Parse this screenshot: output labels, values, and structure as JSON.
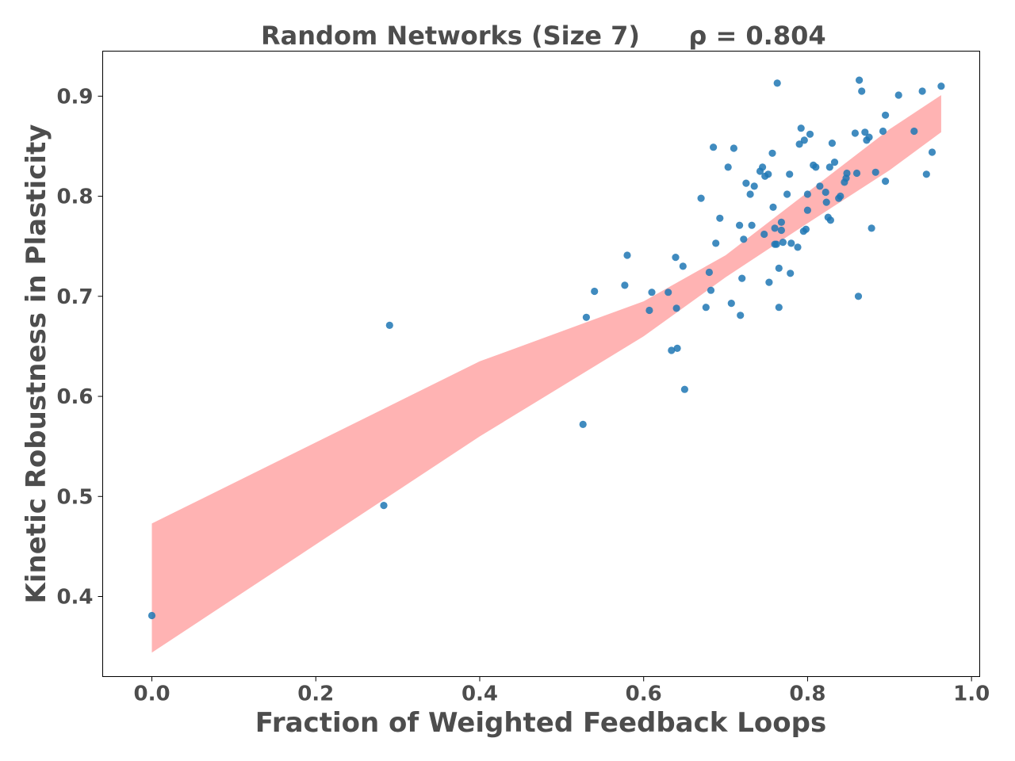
{
  "chart_data": {
    "type": "scatter",
    "title": "Random Networks (Size 7)",
    "annotation": "ρ = 0.804",
    "xlabel": "Fraction of Weighted Feedback Loops",
    "ylabel": "Kinetic Robustness in Plasticity",
    "xlim": [
      -0.06,
      1.01
    ],
    "ylim": [
      0.32,
      0.945
    ],
    "xticks": [
      "0.0",
      "0.2",
      "0.4",
      "0.6",
      "0.8",
      "1.0"
    ],
    "yticks": [
      "0.4",
      "0.5",
      "0.6",
      "0.7",
      "0.8",
      "0.9"
    ],
    "grid": false,
    "colors": {
      "points": "#1f77b4",
      "band": "#ff9a9a",
      "text": "#4d4d4d"
    },
    "confidence_band": {
      "x": [
        0.0,
        0.2,
        0.4,
        0.6,
        0.7,
        0.8,
        0.9,
        0.963
      ],
      "lower": [
        0.344,
        0.452,
        0.56,
        0.66,
        0.719,
        0.773,
        0.826,
        0.864
      ],
      "upper": [
        0.473,
        0.554,
        0.635,
        0.695,
        0.741,
        0.804,
        0.867,
        0.901
      ]
    },
    "x": [
      0.0,
      0.283,
      0.29,
      0.526,
      0.53,
      0.54,
      0.577,
      0.58,
      0.607,
      0.61,
      0.63,
      0.634,
      0.639,
      0.64,
      0.641,
      0.648,
      0.65,
      0.67,
      0.676,
      0.68,
      0.682,
      0.685,
      0.688,
      0.693,
      0.703,
      0.707,
      0.71,
      0.717,
      0.718,
      0.72,
      0.722,
      0.725,
      0.73,
      0.732,
      0.735,
      0.742,
      0.745,
      0.747,
      0.748,
      0.752,
      0.753,
      0.757,
      0.758,
      0.76,
      0.76,
      0.762,
      0.763,
      0.765,
      0.768,
      0.768,
      0.77,
      0.775,
      0.778,
      0.779,
      0.78,
      0.788,
      0.79,
      0.792,
      0.795,
      0.796,
      0.798,
      0.8,
      0.8,
      0.803,
      0.807,
      0.81,
      0.815,
      0.822,
      0.823,
      0.825,
      0.827,
      0.828,
      0.83,
      0.833,
      0.838,
      0.84,
      0.845,
      0.847,
      0.848,
      0.858,
      0.86,
      0.862,
      0.863,
      0.866,
      0.87,
      0.872,
      0.875,
      0.878,
      0.883,
      0.892,
      0.895,
      0.895,
      0.911,
      0.93,
      0.94,
      0.945,
      0.952,
      0.963,
      0.765
    ],
    "y": [
      0.381,
      0.491,
      0.671,
      0.572,
      0.679,
      0.705,
      0.711,
      0.741,
      0.686,
      0.704,
      0.704,
      0.646,
      0.739,
      0.688,
      0.648,
      0.73,
      0.607,
      0.798,
      0.689,
      0.724,
      0.706,
      0.849,
      0.753,
      0.778,
      0.829,
      0.693,
      0.848,
      0.771,
      0.681,
      0.718,
      0.757,
      0.813,
      0.802,
      0.771,
      0.81,
      0.825,
      0.829,
      0.762,
      0.82,
      0.822,
      0.714,
      0.843,
      0.789,
      0.752,
      0.768,
      0.752,
      0.913,
      0.728,
      0.774,
      0.766,
      0.754,
      0.802,
      0.822,
      0.723,
      0.753,
      0.749,
      0.852,
      0.868,
      0.765,
      0.856,
      0.767,
      0.786,
      0.802,
      0.862,
      0.831,
      0.829,
      0.81,
      0.804,
      0.794,
      0.779,
      0.829,
      0.776,
      0.853,
      0.834,
      0.798,
      0.8,
      0.814,
      0.818,
      0.823,
      0.863,
      0.823,
      0.7,
      0.916,
      0.905,
      0.864,
      0.856,
      0.859,
      0.768,
      0.824,
      0.865,
      0.815,
      0.881,
      0.901,
      0.865,
      0.905,
      0.822,
      0.844,
      0.91,
      0.689
    ]
  }
}
